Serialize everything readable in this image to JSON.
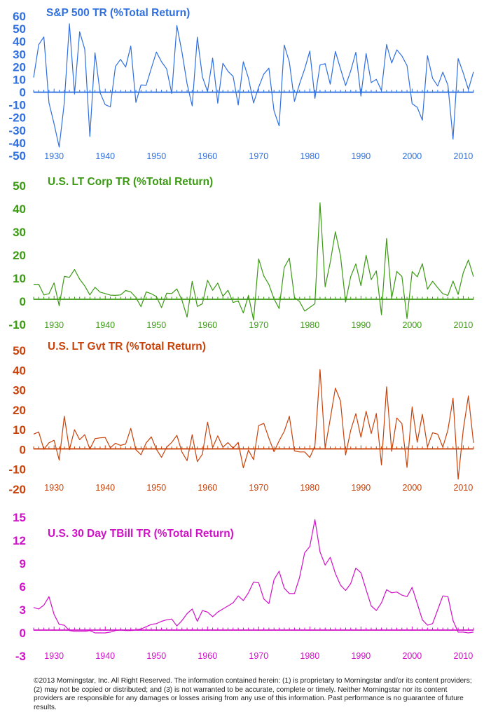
{
  "footnote": "©2013 Morningstar, Inc.  All Right Reserved.  The information contained herein:  (1) is proprietary to Morningstar and/or its content providers; (2) may not be copied or distributed; and (3) is not warranted to be accurate, complete or timely.  Neither Morningstar nor its content providers are responsible for any damages or losses arising from any use of this information.  Past performance is no guarantee of future results.",
  "chart_data": [
    {
      "type": "line",
      "title": "S&P 500 TR (%Total Return)",
      "color": "#2f6fe0",
      "xlabel": "",
      "ylabel": "",
      "xlim": [
        1926,
        2012
      ],
      "ylim": [
        -50,
        60
      ],
      "yticks": [
        -50,
        -40,
        -30,
        -20,
        -10,
        0,
        10,
        20,
        30,
        40,
        50,
        60
      ],
      "xticks": [
        1930,
        1940,
        1950,
        1960,
        1970,
        1980,
        1990,
        2000,
        2010
      ],
      "x": [
        1926,
        1927,
        1928,
        1929,
        1930,
        1931,
        1932,
        1933,
        1934,
        1935,
        1936,
        1937,
        1938,
        1939,
        1940,
        1941,
        1942,
        1943,
        1944,
        1945,
        1946,
        1947,
        1948,
        1949,
        1950,
        1951,
        1952,
        1953,
        1954,
        1955,
        1956,
        1957,
        1958,
        1959,
        1960,
        1961,
        1962,
        1963,
        1964,
        1965,
        1966,
        1967,
        1968,
        1969,
        1970,
        1971,
        1972,
        1973,
        1974,
        1975,
        1976,
        1977,
        1978,
        1979,
        1980,
        1981,
        1982,
        1983,
        1984,
        1985,
        1986,
        1987,
        1988,
        1989,
        1990,
        1991,
        1992,
        1993,
        1994,
        1995,
        1996,
        1997,
        1998,
        1999,
        2000,
        2001,
        2002,
        2003,
        2004,
        2005,
        2006,
        2007,
        2008,
        2009,
        2010,
        2011,
        2012
      ],
      "values": [
        11.6,
        37.5,
        43.6,
        -8.4,
        -24.9,
        -43.3,
        -8.2,
        54.0,
        -1.4,
        47.7,
        33.9,
        -35.0,
        31.1,
        -0.4,
        -9.8,
        -11.6,
        20.3,
        25.9,
        19.8,
        36.4,
        -8.1,
        5.7,
        5.5,
        18.8,
        31.7,
        24.0,
        18.4,
        -1.0,
        52.6,
        31.6,
        6.6,
        -10.8,
        43.4,
        12.0,
        0.5,
        26.9,
        -8.7,
        22.8,
        16.5,
        12.5,
        -10.1,
        24.0,
        11.1,
        -8.5,
        4.0,
        14.3,
        19.0,
        -14.7,
        -26.5,
        37.2,
        23.8,
        -7.2,
        6.6,
        18.4,
        32.4,
        -4.9,
        21.4,
        22.5,
        6.3,
        32.2,
        18.5,
        5.2,
        16.8,
        31.5,
        -3.1,
        30.5,
        7.6,
        10.1,
        1.3,
        37.6,
        23.0,
        33.4,
        28.6,
        21.0,
        -9.1,
        -11.9,
        -22.1,
        28.7,
        10.9,
        4.9,
        15.8,
        5.5,
        -37.0,
        26.5,
        15.1,
        2.1,
        16.0
      ]
    },
    {
      "type": "line",
      "title": "U.S. LT Corp TR (%Total Return)",
      "color": "#3a9a12",
      "xlabel": "",
      "ylabel": "",
      "xlim": [
        1926,
        2012
      ],
      "ylim": [
        -10,
        50
      ],
      "yticks": [
        -10,
        0,
        10,
        20,
        30,
        40,
        50
      ],
      "xticks": [
        1930,
        1940,
        1950,
        1960,
        1970,
        1980,
        1990,
        2000,
        2010
      ],
      "x": [
        1926,
        1927,
        1928,
        1929,
        1930,
        1931,
        1932,
        1933,
        1934,
        1935,
        1936,
        1937,
        1938,
        1939,
        1940,
        1941,
        1942,
        1943,
        1944,
        1945,
        1946,
        1947,
        1948,
        1949,
        1950,
        1951,
        1952,
        1953,
        1954,
        1955,
        1956,
        1957,
        1958,
        1959,
        1960,
        1961,
        1962,
        1963,
        1964,
        1965,
        1966,
        1967,
        1968,
        1969,
        1970,
        1971,
        1972,
        1973,
        1974,
        1975,
        1976,
        1977,
        1978,
        1979,
        1980,
        1981,
        1982,
        1983,
        1984,
        1985,
        1986,
        1987,
        1988,
        1989,
        1990,
        1991,
        1992,
        1993,
        1994,
        1995,
        1996,
        1997,
        1998,
        1999,
        2000,
        2001,
        2002,
        2003,
        2004,
        2005,
        2006,
        2007,
        2008,
        2009,
        2010,
        2011,
        2012
      ],
      "values": [
        7.4,
        7.4,
        2.8,
        3.3,
        8.0,
        -1.9,
        10.8,
        10.4,
        13.8,
        9.6,
        6.7,
        2.8,
        6.1,
        4.0,
        3.4,
        2.7,
        2.6,
        2.8,
        4.7,
        4.1,
        1.7,
        -2.3,
        4.1,
        3.3,
        2.1,
        -2.7,
        3.5,
        3.4,
        5.4,
        0.5,
        -6.8,
        8.7,
        -2.2,
        -1.0,
        9.1,
        4.8,
        7.9,
        2.2,
        4.8,
        -0.5,
        0.2,
        -5.0,
        2.6,
        -8.1,
        18.4,
        11.0,
        7.3,
        1.1,
        -3.1,
        14.6,
        18.7,
        1.7,
        -0.1,
        -4.2,
        -2.6,
        -1.0,
        42.6,
        6.3,
        16.9,
        30.1,
        19.8,
        -0.3,
        10.7,
        16.2,
        6.8,
        19.9,
        9.4,
        13.2,
        -5.8,
        27.2,
        1.4,
        12.9,
        10.8,
        -7.4,
        12.9,
        10.6,
        16.3,
        5.3,
        8.7,
        5.9,
        3.3,
        2.6,
        8.8,
        3.0,
        12.4,
        17.9,
        10.7
      ]
    },
    {
      "type": "line",
      "title": "U.S. LT Gvt TR (%Total Return)",
      "color": "#c8420a",
      "xlabel": "",
      "ylabel": "",
      "xlim": [
        1926,
        2012
      ],
      "ylim": [
        -20,
        50
      ],
      "yticks": [
        -20,
        -10,
        0,
        10,
        20,
        30,
        40,
        50
      ],
      "xticks": [
        1930,
        1940,
        1950,
        1960,
        1970,
        1980,
        1990,
        2000,
        2010
      ],
      "x": [
        1926,
        1927,
        1928,
        1929,
        1930,
        1931,
        1932,
        1933,
        1934,
        1935,
        1936,
        1937,
        1938,
        1939,
        1940,
        1941,
        1942,
        1943,
        1944,
        1945,
        1946,
        1947,
        1948,
        1949,
        1950,
        1951,
        1952,
        1953,
        1954,
        1955,
        1956,
        1957,
        1958,
        1959,
        1960,
        1961,
        1962,
        1963,
        1964,
        1965,
        1966,
        1967,
        1968,
        1969,
        1970,
        1971,
        1972,
        1973,
        1974,
        1975,
        1976,
        1977,
        1978,
        1979,
        1980,
        1981,
        1982,
        1983,
        1984,
        1985,
        1986,
        1987,
        1988,
        1989,
        1990,
        1991,
        1992,
        1993,
        1994,
        1995,
        1996,
        1997,
        1998,
        1999,
        2000,
        2001,
        2002,
        2003,
        2004,
        2005,
        2006,
        2007,
        2008,
        2009,
        2010,
        2011,
        2012
      ],
      "values": [
        7.8,
        8.9,
        0.1,
        3.4,
        4.7,
        -5.3,
        16.8,
        -0.1,
        10.0,
        5.0,
        7.5,
        0.2,
        5.5,
        5.9,
        6.1,
        0.9,
        3.2,
        2.1,
        2.8,
        10.7,
        -0.1,
        -2.6,
        3.4,
        6.4,
        0.1,
        -3.9,
        1.2,
        3.6,
        7.2,
        -1.3,
        -5.6,
        7.5,
        -6.1,
        -2.3,
        13.8,
        1.0,
        6.9,
        1.2,
        3.5,
        0.7,
        3.6,
        -9.2,
        -0.3,
        -5.1,
        12.1,
        13.2,
        5.7,
        -1.1,
        4.4,
        9.2,
        16.8,
        -0.7,
        -1.2,
        -1.2,
        -4.0,
        1.9,
        40.4,
        0.7,
        15.5,
        31.0,
        24.5,
        -2.7,
        9.7,
        18.1,
        6.2,
        19.3,
        8.1,
        18.2,
        -7.8,
        31.7,
        -0.9,
        15.9,
        13.1,
        -9.0,
        21.5,
        3.7,
        17.8,
        1.4,
        8.5,
        7.8,
        1.2,
        9.9,
        25.9,
        -14.9,
        10.1,
        27.1,
        3.4
      ]
    },
    {
      "type": "line",
      "title": "U.S. 30 Day TBill TR (%Total Return)",
      "color": "#d010c8",
      "xlabel": "",
      "ylabel": "",
      "xlim": [
        1926,
        2012
      ],
      "ylim": [
        -3,
        15
      ],
      "yticks": [
        -3,
        0,
        3,
        6,
        9,
        12,
        15
      ],
      "xticks": [
        1930,
        1940,
        1950,
        1960,
        1970,
        1980,
        1990,
        2000,
        2010
      ],
      "x": [
        1926,
        1927,
        1928,
        1929,
        1930,
        1931,
        1932,
        1933,
        1934,
        1935,
        1936,
        1937,
        1938,
        1939,
        1940,
        1941,
        1942,
        1943,
        1944,
        1945,
        1946,
        1947,
        1948,
        1949,
        1950,
        1951,
        1952,
        1953,
        1954,
        1955,
        1956,
        1957,
        1958,
        1959,
        1960,
        1961,
        1962,
        1963,
        1964,
        1965,
        1966,
        1967,
        1968,
        1969,
        1970,
        1971,
        1972,
        1973,
        1974,
        1975,
        1976,
        1977,
        1978,
        1979,
        1980,
        1981,
        1982,
        1983,
        1984,
        1985,
        1986,
        1987,
        1988,
        1989,
        1990,
        1991,
        1992,
        1993,
        1994,
        1995,
        1996,
        1997,
        1998,
        1999,
        2000,
        2001,
        2002,
        2003,
        2004,
        2005,
        2006,
        2007,
        2008,
        2009,
        2010,
        2011,
        2012
      ],
      "values": [
        3.3,
        3.1,
        3.6,
        4.7,
        2.4,
        1.1,
        1.0,
        0.3,
        0.2,
        0.2,
        0.2,
        0.3,
        0.0,
        0.0,
        0.0,
        0.1,
        0.3,
        0.4,
        0.3,
        0.3,
        0.4,
        0.5,
        0.8,
        1.1,
        1.2,
        1.5,
        1.7,
        1.8,
        0.9,
        1.6,
        2.5,
        3.1,
        1.5,
        2.9,
        2.7,
        2.1,
        2.7,
        3.1,
        3.5,
        3.9,
        4.8,
        4.2,
        5.2,
        6.6,
        6.5,
        4.4,
        3.8,
        6.9,
        8.0,
        5.8,
        5.1,
        5.1,
        7.2,
        10.4,
        11.2,
        14.7,
        10.5,
        8.8,
        9.8,
        7.7,
        6.2,
        5.5,
        6.4,
        8.4,
        7.8,
        5.6,
        3.5,
        2.9,
        3.9,
        5.6,
        5.2,
        5.3,
        4.9,
        4.7,
        5.9,
        3.8,
        1.7,
        1.0,
        1.2,
        3.0,
        4.8,
        4.7,
        1.6,
        0.1,
        0.1,
        0.0,
        0.1
      ]
    }
  ]
}
